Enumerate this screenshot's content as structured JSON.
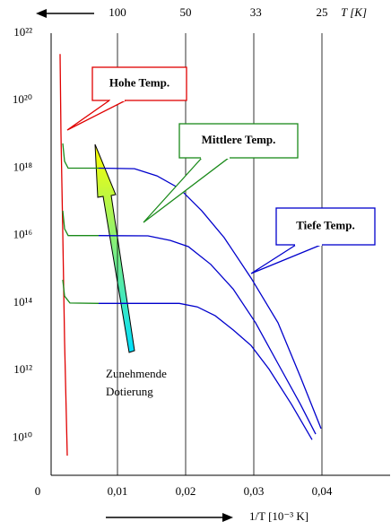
{
  "chart_data": {
    "type": "line",
    "log_y": true,
    "grid": "x",
    "xlim": [
      0,
      0.05
    ],
    "ylim": [
      1000000000.0,
      1e+22
    ],
    "xticks": [
      0,
      {
        "value": 0.01,
        "label": "0,01"
      },
      {
        "value": 0.02,
        "label": "0,02"
      },
      {
        "value": 0.03,
        "label": "0,03"
      },
      {
        "value": 0.04,
        "label": "0,04"
      }
    ],
    "yticks": [
      {
        "value": 10000000000.0,
        "label": "10¹⁰"
      },
      {
        "value": 1000000000000.0,
        "label": "10¹²"
      },
      {
        "value": 100000000000000.0,
        "label": "10¹⁴"
      },
      {
        "value": 1e+16,
        "label": "10¹⁶"
      },
      {
        "value": 1e+18,
        "label": "10¹⁸"
      },
      {
        "value": 1e+20,
        "label": "10²⁰"
      },
      {
        "value": 1e+22,
        "label": "10²²"
      }
    ],
    "top_xticks": [
      100,
      50,
      33,
      25
    ],
    "top_xlabel": "T [K]",
    "xlabel": "1/T [10⁻³ K]",
    "series": [
      {
        "color": "#e00000",
        "x": [
          0.00158,
          0.00171,
          0.00197,
          0.00224,
          0.00263
        ],
        "values": [
          2.4e+21,
          1e+19,
          1.2e+16,
          7600000000000.0,
          3000000000.0
        ]
      },
      {
        "color": "#1a8a1a",
        "x": [
          0.00197,
          0.00224,
          0.00276,
          0.00724
        ],
        "values": [
          5.4e+18,
          1.6e+18,
          1e+18,
          1e+18
        ]
      },
      {
        "color": "#1a8a1a",
        "x": [
          0.00197,
          0.00224,
          0.00276,
          0.00724
        ],
        "values": [
          5.4e+16,
          1.6e+16,
          1e+16,
          1e+16
        ]
      },
      {
        "color": "#1a8a1a",
        "x": [
          0.00197,
          0.00224,
          0.00303,
          0.00724
        ],
        "values": [
          490000000000000.0,
          160000000000000.0,
          100000000000000.0,
          98000000000000.0
        ]
      },
      {
        "color": "#0000cc",
        "x": [
          0.00724,
          0.0125,
          0.01579,
          0.01908,
          0.02237,
          0.02566,
          0.0296,
          0.03355,
          0.03684,
          0.03987
        ],
        "values": [
          1e+18,
          9.6e+17,
          5.9e+17,
          2.5e+17,
          5.4e+16,
          8700000000000000.0,
          550000000000000.0,
          26000000000000.0,
          650000000000.0,
          19000000000.0
        ]
      },
      {
        "color": "#0000cc",
        "x": [
          0.00724,
          0.01447,
          0.01776,
          0.0204,
          0.02368,
          0.02697,
          0.03026,
          0.03355,
          0.03684,
          0.03908
        ],
        "values": [
          1e+16,
          9800000000000000.0,
          7200000000000000.0,
          4700000000000000.0,
          1400000000000000.0,
          260000000000000.0,
          26000000000000.0,
          1600000000000.0,
          100000000000.0,
          13000000000.0
        ]
      },
      {
        "color": "#0000cc",
        "x": [
          0.00724,
          0.01908,
          0.02171,
          0.02434,
          0.02697,
          0.0296,
          0.03224,
          0.03553,
          0.03855
        ],
        "values": [
          98000000000000.0,
          98000000000000.0,
          77000000000000.0,
          42000000000000.0,
          16000000000000.0,
          5500000000000.0,
          1100000000000.0,
          100000000000.0,
          8900000000.0
        ]
      }
    ],
    "annotations": [
      {
        "text": "Hohe Temp.",
        "color": "#e00000"
      },
      {
        "text": "Mittlere Temp.",
        "color": "#1a8a1a"
      },
      {
        "text": "Tiefe Temp.",
        "color": "#0000cc"
      },
      {
        "text": "Zunehmende"
      },
      {
        "text": "Dotierung"
      }
    ]
  }
}
